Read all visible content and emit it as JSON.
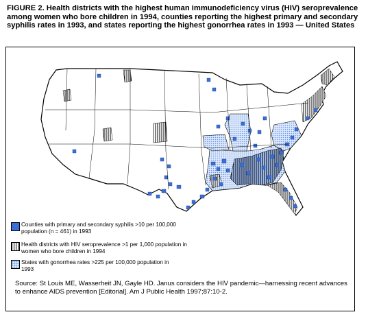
{
  "figure": {
    "title": "FIGURE 2. Health districts with the highest human immunodeficiency virus (HIV) seroprevalence among women who bore children in 1994, counties reporting the highest primary and secondary syphilis rates in 1993, and states reporting the highest gonorrhea rates in 1993 — United States"
  },
  "legend": {
    "items": [
      {
        "label": "Counties with primary and secondary syphilis >10 per 100,000 population (n = 461) in 1993",
        "pattern": "syphilis-solid"
      },
      {
        "label": "Health districts with HIV seroprevalence >1 per 1,000 population in women who bore children in 1994",
        "pattern": "hiv-hatch"
      },
      {
        "label": "States with gonorrhea rates >225 per 100,000 population in 1993",
        "pattern": "gonorrhea-dot"
      }
    ]
  },
  "source": {
    "text": "Source: St Louis ME, Wasserheit JN, Gayle HD. Janus considers the HIV pandemic—harnessing recent advances to enhance AIDS prevention [Editorial]. Am J Public Health 1997;87:10-2."
  },
  "colors": {
    "syphilis": "#3a6fd8",
    "gonorrhea_dot": "#6a9be8",
    "outline": "#000000"
  }
}
